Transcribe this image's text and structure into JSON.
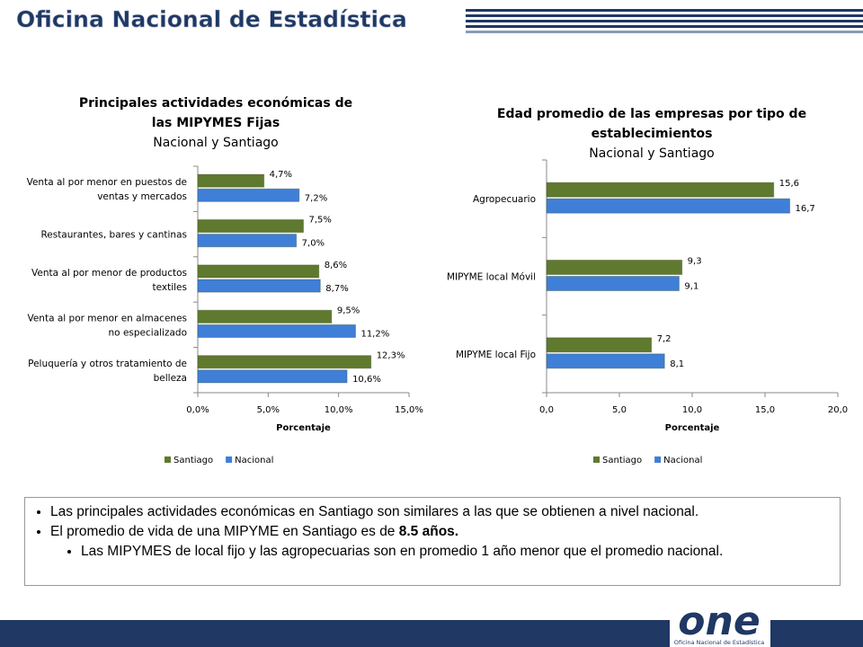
{
  "header": {
    "title": "Oficina Nacional de Estadística"
  },
  "chart_data": [
    {
      "type": "hbar",
      "title": "Principales actividades económicas de las MIPYMES Fijas",
      "subtitle": "Nacional y Santiago",
      "categories": [
        "Venta al por menor en puestos de\nventas y mercados",
        "Restaurantes, bares y cantinas",
        "Venta al por menor de productos\ntextiles",
        "Venta al por menor en almacenes\nno especializado",
        "Peluquería y otros tratamiento de\nbelleza"
      ],
      "series": [
        {
          "name": "Santiago",
          "color": "#5f7a2e",
          "values": [
            4.7,
            7.5,
            8.6,
            9.5,
            12.3
          ],
          "value_labels": [
            "4,7%",
            "7,5%",
            "8,6%",
            "9,5%",
            "12,3%"
          ]
        },
        {
          "name": "Nacional",
          "color": "#3f7fd8",
          "values": [
            7.2,
            7.0,
            8.7,
            11.2,
            10.6
          ],
          "value_labels": [
            "7,2%",
            "7,0%",
            "8,7%",
            "11,2%",
            "10,6%"
          ]
        }
      ],
      "xlim": [
        0,
        15
      ],
      "xticks": [
        {
          "value": 0,
          "label": "0,0%"
        },
        {
          "value": 5,
          "label": "5,0%"
        },
        {
          "value": 10,
          "label": "10,0%"
        },
        {
          "value": 15,
          "label": "15,0%"
        }
      ],
      "xlabel": "Porcentaje",
      "legend": "bottom"
    },
    {
      "type": "hbar",
      "title": "Edad promedio de las empresas por tipo de establecimientos",
      "subtitle": "Nacional y Santiago",
      "categories": [
        "Agropecuario",
        "MIPYME local Móvil",
        "MIPYME local Fijo"
      ],
      "series": [
        {
          "name": "Santiago",
          "color": "#5f7a2e",
          "values": [
            15.6,
            9.3,
            7.2
          ],
          "value_labels": [
            "15,6",
            "9,3",
            "7,2"
          ]
        },
        {
          "name": "Nacional",
          "color": "#3f7fd8",
          "values": [
            16.7,
            9.1,
            8.1
          ],
          "value_labels": [
            "16,7",
            "9,1",
            "8,1"
          ]
        }
      ],
      "xlim": [
        0,
        20
      ],
      "xticks": [
        {
          "value": 0,
          "label": "0,0"
        },
        {
          "value": 5,
          "label": "5,0"
        },
        {
          "value": 10,
          "label": "10,0"
        },
        {
          "value": 15,
          "label": "15,0"
        },
        {
          "value": 20,
          "label": "20,0"
        }
      ],
      "xlabel": "Porcentaje",
      "legend": "bottom"
    }
  ],
  "bullets": [
    {
      "text": "Las principales actividades económicas en Santiago son similares a las que se obtienen a nivel nacional."
    },
    {
      "text": "El promedio de vida de una MIPYME en Santiago es de ",
      "bold": "8.5 años."
    },
    {
      "text": "Las MIPYMES de local fijo y las agropecuarias son en promedio 1 año menor que el promedio nacional."
    }
  ],
  "logo": {
    "mark": "one",
    "name": "Oficina Nacional de Estadística"
  }
}
